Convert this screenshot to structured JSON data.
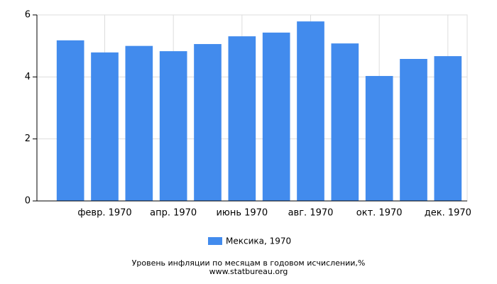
{
  "chart_data": {
    "type": "bar",
    "title": "Уровень инфляции по месяцам в годовом исчислении,%",
    "source": "www.statbureau.org",
    "categories": [
      null,
      "февр. 1970",
      null,
      "апр. 1970",
      null,
      "июнь 1970",
      null,
      "авг. 1970",
      null,
      "окт. 1970",
      null,
      "дек. 1970"
    ],
    "series": [
      {
        "name": "Мексика, 1970",
        "color": "#428bed",
        "values": [
          5.18,
          4.79,
          5.0,
          4.83,
          5.06,
          5.31,
          5.43,
          5.79,
          5.08,
          4.03,
          4.58,
          4.67
        ]
      }
    ],
    "ylim": [
      0,
      6
    ],
    "yticks": [
      0,
      2,
      4,
      6
    ],
    "grid": true
  }
}
